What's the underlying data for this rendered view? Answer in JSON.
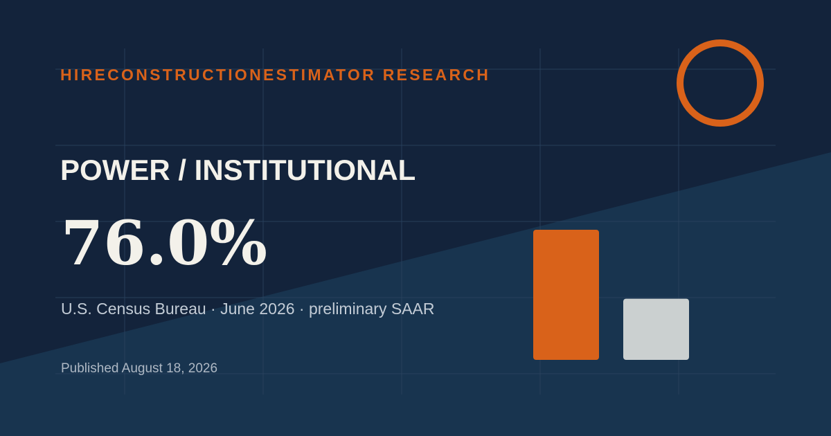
{
  "brand_label": "HIRECONSTRUCTIONESTIMATOR RESEARCH",
  "category_label": "POWER / INSTITUTIONAL",
  "headline_value": "76.0%",
  "source_line": "U.S. Census Bureau · June 2026 · preliminary SAAR",
  "published_line": "Published August 18, 2026",
  "colors": {
    "background_dark": "#13233b",
    "background_light": "#18344f",
    "accent_orange": "#d9621a",
    "bar_light": "#cbd0d0",
    "text_primary": "#f3f1ea"
  },
  "chart_data": {
    "type": "bar",
    "categories": [
      "",
      ""
    ],
    "values": [
      1.0,
      0.47
    ],
    "colors": [
      "#d9621a",
      "#cbd0d0"
    ],
    "title": "",
    "xlabel": "",
    "ylabel": ""
  }
}
